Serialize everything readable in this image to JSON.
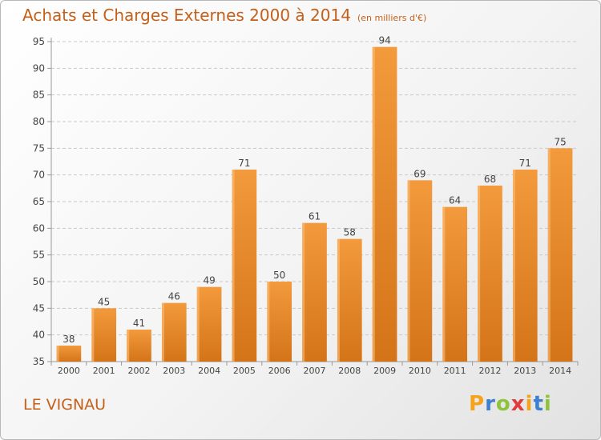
{
  "chart_data": {
    "type": "bar",
    "title": "Achats et Charges Externes 2000 à 2014",
    "subtitle": "(en milliers d'€)",
    "xlabel": "",
    "ylabel": "",
    "categories": [
      "2000",
      "2001",
      "2002",
      "2003",
      "2004",
      "2005",
      "2006",
      "2007",
      "2008",
      "2009",
      "2010",
      "2011",
      "2012",
      "2013",
      "2014"
    ],
    "values": [
      38,
      45,
      41,
      46,
      49,
      71,
      50,
      61,
      58,
      94,
      69,
      64,
      68,
      71,
      75
    ],
    "data_labels": [
      "38",
      "45",
      "41",
      "46",
      "49",
      "71",
      "50",
      "61",
      "58",
      "94",
      "69",
      "64",
      "68",
      "71",
      "75"
    ],
    "y_ticks": [
      "35",
      "40",
      "45",
      "50",
      "55",
      "60",
      "65",
      "70",
      "75",
      "80",
      "85",
      "90",
      "95"
    ],
    "ylim": [
      35,
      95
    ],
    "grid": "horizontal dashed",
    "legend": "none",
    "bar_color": "#f29a3c",
    "bar_color_dark": "#d47418"
  },
  "footer": {
    "commune": "LE VIGNAU",
    "logo_letters": [
      "P",
      "r",
      "o",
      "x",
      "i",
      "t",
      "i"
    ],
    "logo_colors": [
      "#f5a31a",
      "#3d7fd0",
      "#8fc43a",
      "#e23b3b",
      "#f5a31a",
      "#3d7fd0",
      "#8fc43a"
    ]
  }
}
